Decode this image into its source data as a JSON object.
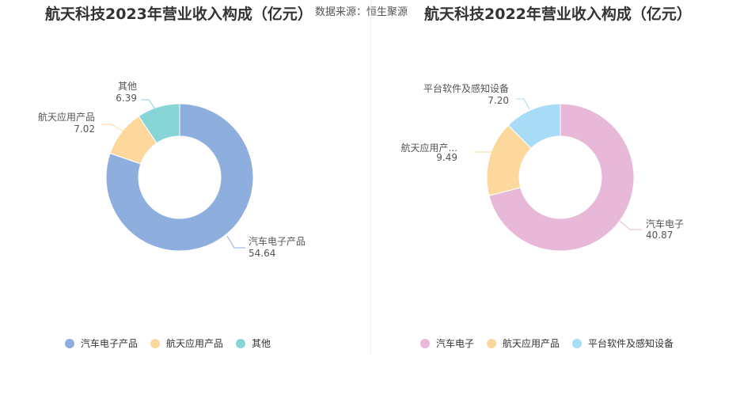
{
  "source": "数据来源：恒生聚源",
  "chart_data": [
    {
      "type": "pie",
      "title": "航天科技2023年营业收入构成（亿元）",
      "slices": [
        {
          "name": "汽车电子产品",
          "value": 54.64,
          "color": "#8eaedd",
          "label_name": "汽车电子产品",
          "label_value": "54.64"
        },
        {
          "name": "航天应用产品",
          "value": 7.02,
          "color": "#fdd89c",
          "label_name": "航天应用产品",
          "label_value": "7.02"
        },
        {
          "name": "其他",
          "value": 6.39,
          "color": "#88d5d8",
          "label_name": "其他",
          "label_value": "6.39"
        }
      ],
      "legend": [
        "汽车电子产品",
        "航天应用产品",
        "其他"
      ]
    },
    {
      "type": "pie",
      "title": "航天科技2022年营业收入构成（亿元）",
      "slices": [
        {
          "name": "汽车电子",
          "value": 40.87,
          "color": "#e7b8d8",
          "label_name": "汽车电子",
          "label_value": "40.87"
        },
        {
          "name": "航天应用产品",
          "value": 9.49,
          "color": "#fdd89c",
          "label_name": "航天应用产...",
          "label_value": "9.49"
        },
        {
          "name": "平台软件及感知设备",
          "value": 7.2,
          "color": "#a8dcf6",
          "label_name": "平台软件及感知设备",
          "label_value": "7.20"
        }
      ],
      "legend": [
        "汽车电子",
        "航天应用产品",
        "平台软件及感知设备"
      ]
    }
  ]
}
